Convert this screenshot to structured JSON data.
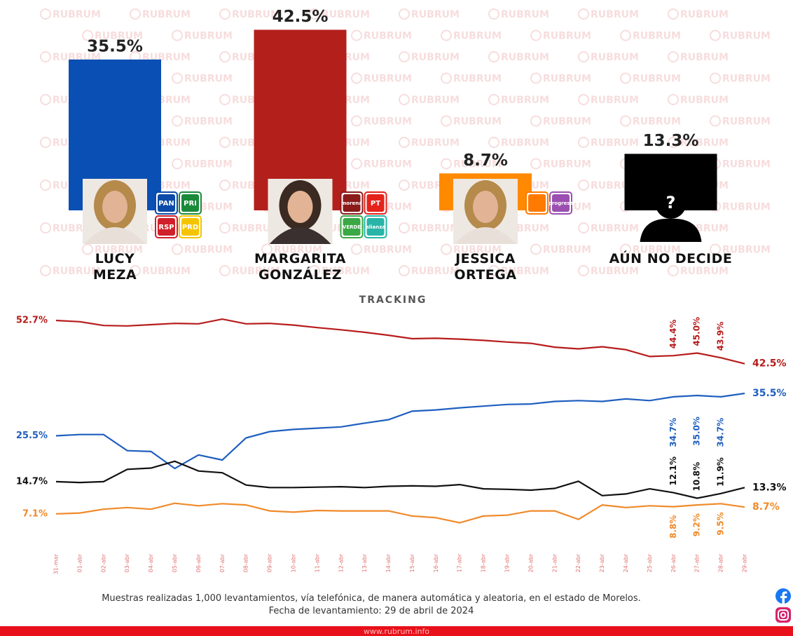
{
  "watermark": "RUBRUM",
  "chart_data": [
    {
      "type": "bar",
      "categories": [
        "LUCY MEZA",
        "MARGARITA GONZÁLEZ",
        "JESSICA ORTEGA",
        "AÚN NO DECIDE"
      ],
      "values": [
        35.5,
        42.5,
        8.7,
        13.3
      ],
      "value_labels": [
        "35.5%",
        "42.5%",
        "8.7%",
        "13.3%"
      ],
      "colors": [
        "#0a4fb3",
        "#b3201b",
        "#ff8a00",
        "#000000"
      ],
      "placeholder": "?",
      "logos": [
        [
          {
            "text": "PAN",
            "color": "#0b4aa8"
          },
          {
            "text": "PRI",
            "color": "#1a8a3a"
          },
          {
            "text": "RSP",
            "color": "#d0202a"
          },
          {
            "text": "PRD",
            "color": "#f5c400"
          }
        ],
        [
          {
            "text": "morena",
            "color": "#8b1a1a"
          },
          {
            "text": "PT",
            "color": "#e5231b"
          },
          {
            "text": "VERDE",
            "color": "#3aa845"
          },
          {
            "text": "alianza",
            "color": "#28b5a8"
          }
        ],
        [
          {
            "color": "#ff7a00"
          },
          {
            "text": "progresa",
            "color": "#9b4fb0"
          }
        ]
      ]
    },
    {
      "type": "line",
      "title": "TRACKING",
      "categories": [
        "31-mar",
        "01-abr",
        "02-abr",
        "03-abr",
        "04-abr",
        "05-abr",
        "06-abr",
        "07-abr",
        "08-abr",
        "09-abr",
        "10-abr",
        "11-abr",
        "12-abr",
        "13-abr",
        "14-abr",
        "15-abr",
        "16-abr",
        "17-abr",
        "18-abr",
        "19-abr",
        "20-abr",
        "21-abr",
        "22-abr",
        "23-abr",
        "24-abr",
        "25-abr",
        "26-abr",
        "27-abr",
        "28-abr",
        "29-abr"
      ],
      "series": [
        {
          "name": "MARGARITA GONZÁLEZ",
          "color": "#b71c1c",
          "values": [
            52.7,
            52.4,
            51.5,
            51.4,
            51.7,
            52.0,
            51.9,
            53.0,
            51.9,
            52.0,
            51.6,
            51.0,
            50.5,
            49.9,
            49.2,
            48.4,
            48.5,
            48.3,
            48.0,
            47.6,
            47.3,
            46.4,
            46.0,
            46.5,
            45.8,
            44.2,
            44.4,
            45.0,
            43.9,
            42.5
          ],
          "value_labels": [
            "52.7%",
            null,
            null,
            null,
            null,
            null,
            null,
            null,
            null,
            null,
            null,
            null,
            null,
            null,
            null,
            null,
            null,
            null,
            null,
            null,
            null,
            null,
            null,
            null,
            null,
            null,
            "44.4%",
            "45.0%",
            "43.9%",
            "42.5%"
          ]
        },
        {
          "name": "LUCY MEZA",
          "color": "#1f5fbf",
          "values": [
            25.5,
            25.8,
            25.8,
            22.0,
            21.8,
            17.8,
            21.0,
            19.8,
            25.0,
            26.5,
            27.0,
            27.3,
            27.6,
            28.5,
            29.3,
            31.3,
            31.6,
            32.1,
            32.5,
            32.9,
            33.0,
            33.6,
            33.8,
            33.6,
            34.2,
            33.8,
            34.7,
            35.0,
            34.7,
            35.5
          ],
          "value_labels": [
            "25.5%",
            null,
            null,
            null,
            null,
            null,
            null,
            null,
            null,
            null,
            null,
            null,
            null,
            null,
            null,
            null,
            null,
            null,
            null,
            null,
            null,
            null,
            null,
            null,
            null,
            null,
            "34.7%",
            "35.0%",
            "34.7%",
            "35.5%"
          ]
        },
        {
          "name": "AÚN NO DECIDE",
          "color": "#111111",
          "values": [
            14.7,
            14.5,
            14.7,
            17.6,
            17.9,
            19.5,
            17.2,
            16.8,
            13.9,
            13.3,
            13.3,
            13.4,
            13.5,
            13.3,
            13.6,
            13.7,
            13.6,
            14.0,
            13.0,
            12.9,
            12.7,
            13.1,
            14.8,
            11.4,
            11.8,
            13.0,
            12.1,
            10.8,
            11.9,
            13.3
          ],
          "value_labels": [
            "14.7%",
            null,
            null,
            null,
            null,
            null,
            null,
            null,
            null,
            null,
            null,
            null,
            null,
            null,
            null,
            null,
            null,
            null,
            null,
            null,
            null,
            null,
            null,
            null,
            null,
            null,
            "12.1%",
            "10.8%",
            "11.9%",
            "13.3%"
          ]
        },
        {
          "name": "JESSICA ORTEGA",
          "color": "#f08a2a",
          "values": [
            7.1,
            7.3,
            8.2,
            8.6,
            8.2,
            9.6,
            9.0,
            9.5,
            9.2,
            7.8,
            7.5,
            7.9,
            7.8,
            7.8,
            7.8,
            6.6,
            6.2,
            5.0,
            6.6,
            6.8,
            7.8,
            7.8,
            5.8,
            9.2,
            8.6,
            9.0,
            8.8,
            9.2,
            9.5,
            8.7
          ],
          "value_labels": [
            "7.1%",
            null,
            null,
            null,
            null,
            null,
            null,
            null,
            null,
            null,
            null,
            null,
            null,
            null,
            null,
            null,
            null,
            null,
            null,
            null,
            null,
            null,
            null,
            null,
            null,
            null,
            "8.8%",
            "9.2%",
            "9.5%",
            "8.7%"
          ]
        }
      ]
    }
  ],
  "footer": {
    "note": "Muestras realizadas 1,000 levantamientos, vía telefónica, de manera automática y aleatoria, en el estado de Morelos.",
    "date": "Fecha de levantamiento: 29 de abril de 2024",
    "website": "www.rubrum.info"
  }
}
